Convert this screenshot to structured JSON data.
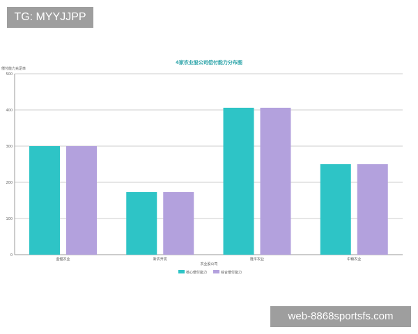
{
  "watermarks": {
    "top_left": "TG: MYYJJPP",
    "bottom_right": "web-8868sportsfs.com"
  },
  "chart_data": {
    "type": "bar",
    "title": "4家农业股公司偿付能力分布图",
    "ylabel": "偿付能力充足率",
    "xlabel": "农业股公司",
    "categories": [
      "金健农业",
      "新农开发",
      "隆平农业",
      "中粮农业"
    ],
    "series": [
      {
        "name": "核心偿付能力",
        "color": "#2ec4c6",
        "values": [
          300,
          173,
          406,
          250
        ]
      },
      {
        "name": "综合偿付能力",
        "color": "#b3a1dd",
        "values": [
          300,
          173,
          406,
          250
        ]
      }
    ],
    "ylim": [
      0,
      500
    ],
    "yticks": [
      0,
      100,
      200,
      300,
      400,
      500
    ],
    "grid": true,
    "legend": "bottom-center"
  }
}
